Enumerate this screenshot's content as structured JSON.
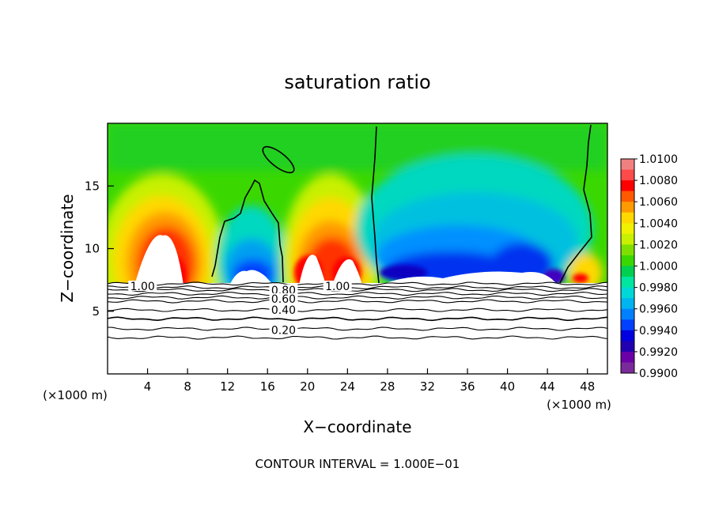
{
  "chart_data": {
    "type": "heatmap",
    "title": "saturation ratio",
    "xlabel": "X−coordinate",
    "ylabel": "Z−coordinate",
    "x_unit_left": "(×1000 m)",
    "x_unit_right": "(×1000 m)",
    "footer": "CONTOUR INTERVAL = 1.000E−01",
    "xlim": [
      0,
      50
    ],
    "ylim": [
      0,
      20
    ],
    "x_ticks": [
      4,
      8,
      12,
      16,
      20,
      24,
      28,
      32,
      36,
      40,
      44,
      48
    ],
    "y_ticks": [
      5,
      10,
      15
    ],
    "colorbar": {
      "min": 0.99,
      "max": 1.01,
      "labels": [
        "1.0100",
        "1.0080",
        "1.0060",
        "1.0040",
        "1.0020",
        "1.0000",
        "0.9980",
        "0.9960",
        "0.9940",
        "0.9920",
        "0.9900"
      ],
      "colors": [
        "#f08080",
        "#ff4a4a",
        "#ff0000",
        "#ff5a00",
        "#ff9a00",
        "#ffd800",
        "#f0f000",
        "#c8f000",
        "#7ee000",
        "#3ad800",
        "#00d050",
        "#00e6a0",
        "#00d8d8",
        "#00b4f0",
        "#0080ff",
        "#0040ff",
        "#0000e0",
        "#2000b0",
        "#6a00a8",
        "#7a2a9a"
      ]
    },
    "contour_labels": [
      {
        "text": "1.00",
        "x": 3.5,
        "y": 7.0
      },
      {
        "text": "1.00",
        "x": 23.0,
        "y": 7.0
      },
      {
        "text": "0.80",
        "x": 17.6,
        "y": 6.7
      },
      {
        "text": "0.60",
        "x": 17.6,
        "y": 6.0
      },
      {
        "text": "0.40",
        "x": 17.6,
        "y": 5.1
      },
      {
        "text": "0.20",
        "x": 17.6,
        "y": 3.5
      }
    ],
    "contour_levels_below": [
      0.9,
      0.8,
      0.7,
      0.6,
      0.5,
      0.4,
      0.3,
      0.2,
      0.1
    ]
  }
}
